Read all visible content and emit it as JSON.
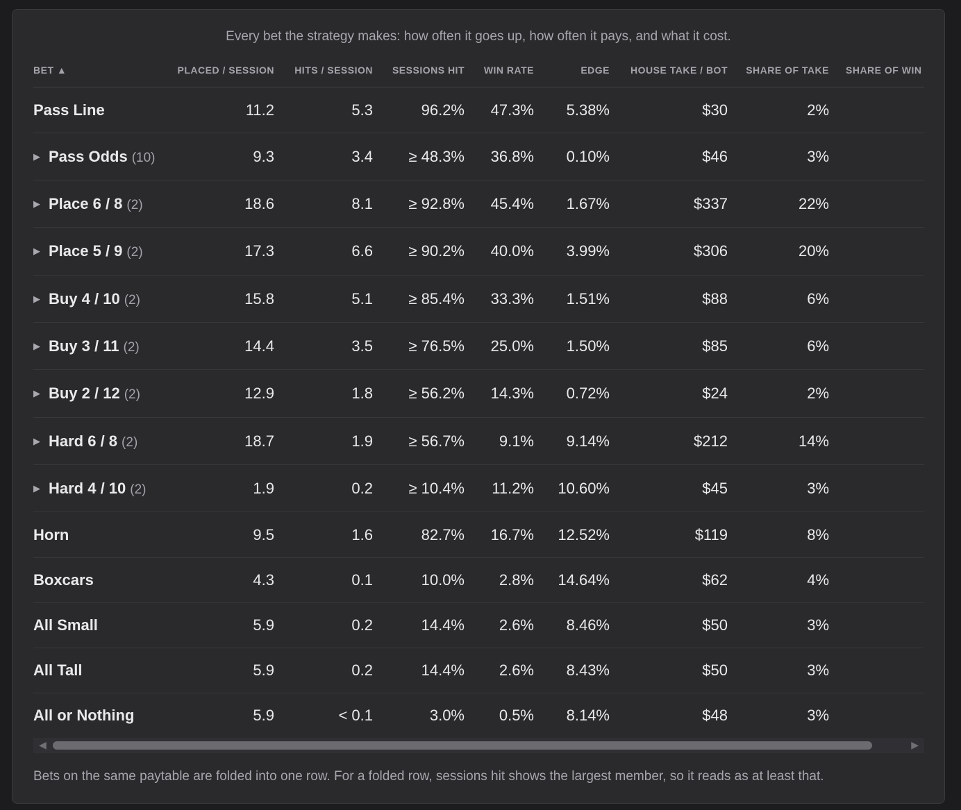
{
  "caption": "Every bet the strategy makes: how often it goes up, how often it pays, and what it cost.",
  "headers": {
    "bet": "BET ▲",
    "placed": "PLACED / SESSION",
    "hits": "HITS / SESSION",
    "sessions_hit": "SESSIONS HIT",
    "win_rate": "WIN RATE",
    "edge": "EDGE",
    "house_take": "HOUSE TAKE / BOT",
    "share_take": "SHARE OF TAKE",
    "share_win": "SHARE OF WIN"
  },
  "rows": [
    {
      "name": "Pass Line",
      "count": "",
      "placed": "11.2",
      "hits": "5.3",
      "sessions_hit": "96.2%",
      "win_rate": "47.3%",
      "edge": "5.38%",
      "house_take": "$30",
      "share_take": "2%"
    },
    {
      "name": "Pass Odds",
      "count": "(10)",
      "placed": "9.3",
      "hits": "3.4",
      "sessions_hit": "≥ 48.3%",
      "win_rate": "36.8%",
      "edge": "0.10%",
      "house_take": "$46",
      "share_take": "3%"
    },
    {
      "name": "Place 6 / 8",
      "count": "(2)",
      "placed": "18.6",
      "hits": "8.1",
      "sessions_hit": "≥ 92.8%",
      "win_rate": "45.4%",
      "edge": "1.67%",
      "house_take": "$337",
      "share_take": "22%"
    },
    {
      "name": "Place 5 / 9",
      "count": "(2)",
      "placed": "17.3",
      "hits": "6.6",
      "sessions_hit": "≥ 90.2%",
      "win_rate": "40.0%",
      "edge": "3.99%",
      "house_take": "$306",
      "share_take": "20%"
    },
    {
      "name": "Buy 4 / 10",
      "count": "(2)",
      "placed": "15.8",
      "hits": "5.1",
      "sessions_hit": "≥ 85.4%",
      "win_rate": "33.3%",
      "edge": "1.51%",
      "house_take": "$88",
      "share_take": "6%"
    },
    {
      "name": "Buy 3 / 11",
      "count": "(2)",
      "placed": "14.4",
      "hits": "3.5",
      "sessions_hit": "≥ 76.5%",
      "win_rate": "25.0%",
      "edge": "1.50%",
      "house_take": "$85",
      "share_take": "6%"
    },
    {
      "name": "Buy 2 / 12",
      "count": "(2)",
      "placed": "12.9",
      "hits": "1.8",
      "sessions_hit": "≥ 56.2%",
      "win_rate": "14.3%",
      "edge": "0.72%",
      "house_take": "$24",
      "share_take": "2%"
    },
    {
      "name": "Hard 6 / 8",
      "count": "(2)",
      "placed": "18.7",
      "hits": "1.9",
      "sessions_hit": "≥ 56.7%",
      "win_rate": "9.1%",
      "edge": "9.14%",
      "house_take": "$212",
      "share_take": "14%"
    },
    {
      "name": "Hard 4 / 10",
      "count": "(2)",
      "placed": "1.9",
      "hits": "0.2",
      "sessions_hit": "≥ 10.4%",
      "win_rate": "11.2%",
      "edge": "10.60%",
      "house_take": "$45",
      "share_take": "3%"
    },
    {
      "name": "Horn",
      "count": "",
      "placed": "9.5",
      "hits": "1.6",
      "sessions_hit": "82.7%",
      "win_rate": "16.7%",
      "edge": "12.52%",
      "house_take": "$119",
      "share_take": "8%"
    },
    {
      "name": "Boxcars",
      "count": "",
      "placed": "4.3",
      "hits": "0.1",
      "sessions_hit": "10.0%",
      "win_rate": "2.8%",
      "edge": "14.64%",
      "house_take": "$62",
      "share_take": "4%"
    },
    {
      "name": "All Small",
      "count": "",
      "placed": "5.9",
      "hits": "0.2",
      "sessions_hit": "14.4%",
      "win_rate": "2.6%",
      "edge": "8.46%",
      "house_take": "$50",
      "share_take": "3%"
    },
    {
      "name": "All Tall",
      "count": "",
      "placed": "5.9",
      "hits": "0.2",
      "sessions_hit": "14.4%",
      "win_rate": "2.6%",
      "edge": "8.43%",
      "house_take": "$50",
      "share_take": "3%"
    },
    {
      "name": "All or Nothing",
      "count": "",
      "placed": "5.9",
      "hits": "< 0.1",
      "sessions_hit": "3.0%",
      "win_rate": "0.5%",
      "edge": "8.14%",
      "house_take": "$48",
      "share_take": "3%"
    }
  ],
  "scrollbar": {
    "left_arrow": "◀",
    "right_arrow": "▶"
  },
  "expand_icon": "▶",
  "footnote": "Bets on the same paytable are folded into one row. For a folded row, sessions hit shows the largest member, so it reads as at least that."
}
